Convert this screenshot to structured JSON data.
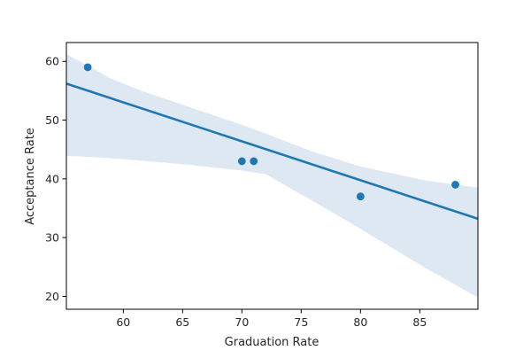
{
  "chart_data": {
    "type": "scatter",
    "title": "",
    "xlabel": "Graduation Rate",
    "ylabel": "Acceptance Rate",
    "xlim": [
      55.2,
      89.9
    ],
    "ylim": [
      17.8,
      63.2
    ],
    "x_ticks": [
      60,
      65,
      70,
      75,
      80,
      85
    ],
    "y_ticks": [
      20,
      30,
      40,
      50,
      60
    ],
    "grid": false,
    "legend": "none",
    "colors": {
      "points": "#1f77b4",
      "regression_line": "#1f77b4",
      "confidence_band": "#dde8f3",
      "axes": "#000000"
    },
    "points": [
      {
        "x": 57,
        "y": 59
      },
      {
        "x": 70,
        "y": 43
      },
      {
        "x": 71,
        "y": 43
      },
      {
        "x": 80,
        "y": 37
      },
      {
        "x": 88,
        "y": 39
      }
    ],
    "regression": {
      "x": [
        55.2,
        89.9
      ],
      "y": [
        56.2,
        33.2
      ]
    },
    "confidence_band": {
      "x": [
        55.2,
        57.5,
        59,
        61.5,
        65,
        70,
        72,
        76,
        80,
        85.5,
        89.9
      ],
      "upper": [
        61.2,
        58.7,
        57.0,
        55.0,
        52.6,
        49.2,
        47.7,
        44.6,
        42.1,
        39.7,
        38.5
      ],
      "lower": [
        43.9,
        43.7,
        43.5,
        43.1,
        42.5,
        41.4,
        40.8,
        36.2,
        31.5,
        24.8,
        19.8
      ]
    }
  }
}
